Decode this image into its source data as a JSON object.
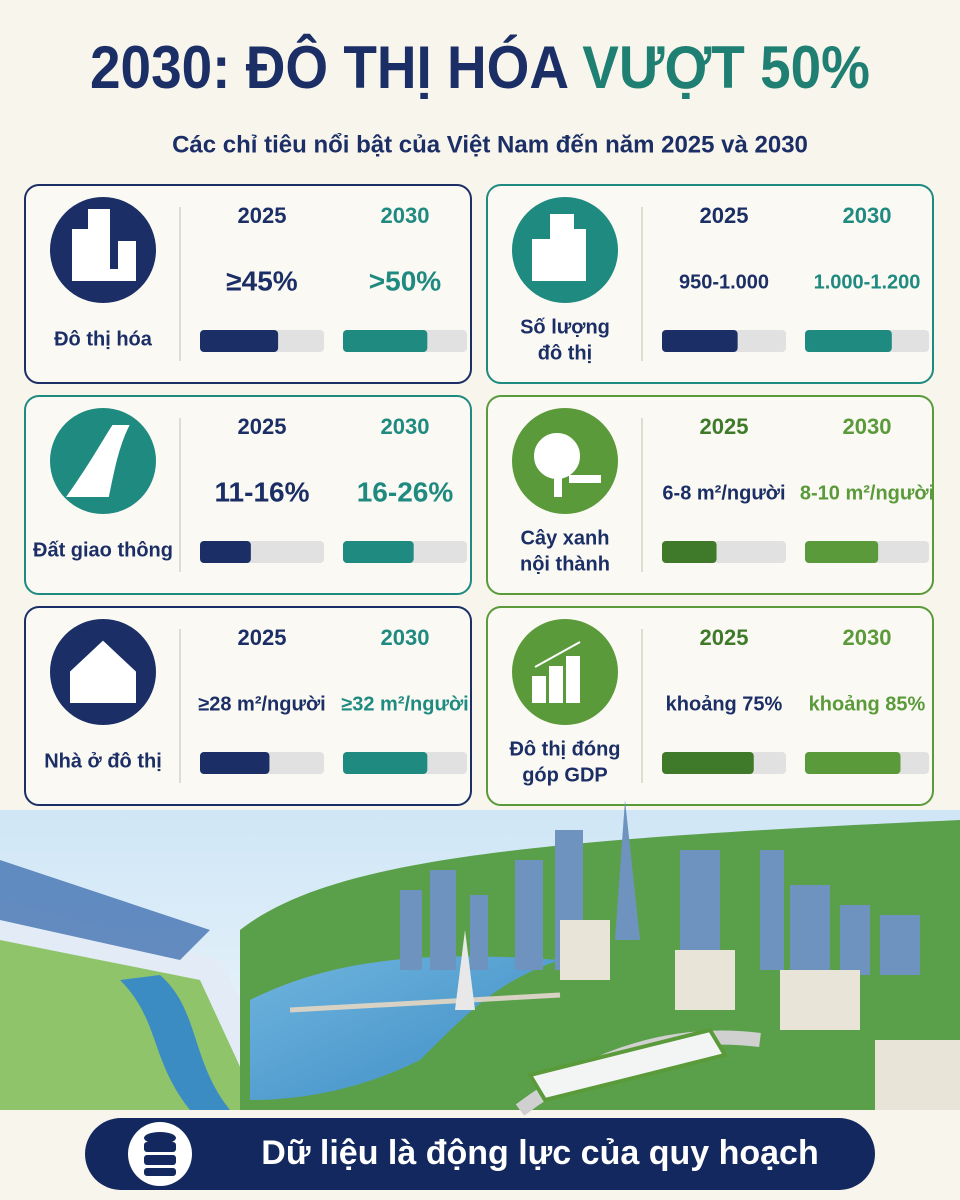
{
  "header": {
    "title_main": "2030: ĐÔ THỊ HÓA",
    "title_accent": "VƯỢT 50%",
    "subtitle": "Các chỉ tiêu nổi bật của Việt Nam đến năm 2025 và 2030"
  },
  "metrics": [
    {
      "label": [
        "Đô thị hóa"
      ],
      "items": [
        {
          "year": "2025",
          "value": "≥45%",
          "bar": 63
        },
        {
          "year": "2030",
          "value": ">50%",
          "bar": 68
        }
      ]
    },
    {
      "label": [
        "Số lượng",
        "đô thị"
      ],
      "items": [
        {
          "year": "2025",
          "value": "950-1.000",
          "bar": 61
        },
        {
          "year": "2030",
          "value": "1.000-1.200",
          "bar": 70
        }
      ]
    },
    {
      "label": [
        "Đất giao thông"
      ],
      "items": [
        {
          "year": "2025",
          "value": "11-16%",
          "bar": 41
        },
        {
          "year": "2030",
          "value": "16-26%",
          "bar": 57
        }
      ]
    },
    {
      "label": [
        "Cây xanh",
        "nội thành"
      ],
      "items": [
        {
          "year": "2025",
          "value": "6-8 m²/người",
          "bar": 44
        },
        {
          "year": "2030",
          "value": "8-10 m²/người",
          "bar": 59
        }
      ]
    },
    {
      "label": [
        "Nhà ở đô thị"
      ],
      "items": [
        {
          "year": "2025",
          "value": "≥28 m²/người",
          "bar": 56
        },
        {
          "year": "2030",
          "value": "≥32 m²/người",
          "bar": 68
        }
      ]
    },
    {
      "label": [
        "Đô thị đóng",
        "góp GDP"
      ],
      "items": [
        {
          "year": "2025",
          "value": "khoảng 75%",
          "bar": 74
        },
        {
          "year": "2030",
          "value": "khoảng 85%",
          "bar": 77
        }
      ]
    }
  ],
  "footer": {
    "text": "Dữ liệu là động lực của quy hoạch"
  }
}
